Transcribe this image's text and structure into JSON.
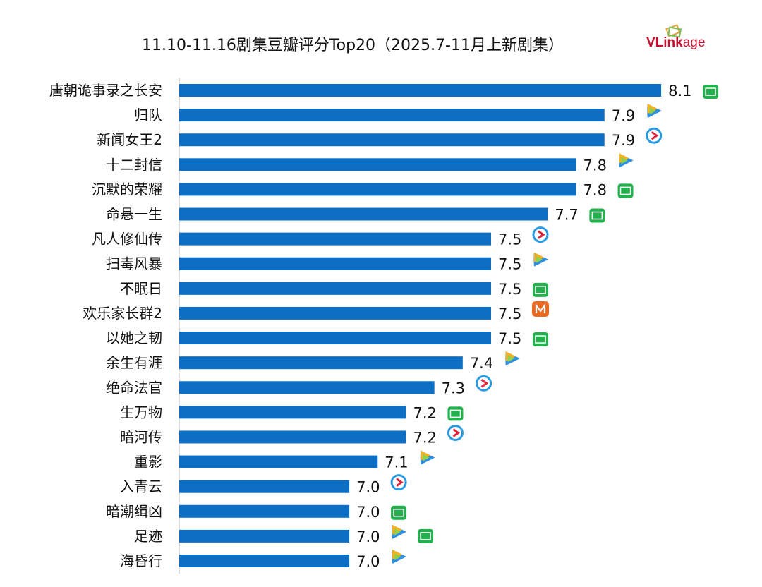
{
  "chart_data": {
    "type": "bar",
    "orientation": "horizontal",
    "title": "11.10-11.16剧集豆瓣评分Top20（2025.7-11月上新剧集）",
    "xlim": [
      6.4,
      8.2
    ],
    "grid": false,
    "bar_color": "#0d6fc4",
    "categories": [
      "唐朝诡事录之长安",
      "归队",
      "新闻女王2",
      "十二封信",
      "沉默的荣耀",
      "命悬一生",
      "凡人修仙传",
      "扫毒风暴",
      "不眠日",
      "欢乐家长群2",
      "以她之韧",
      "余生有涯",
      "绝命法官",
      "生万物",
      "暗河传",
      "重影",
      "入青云",
      "暗潮缉凶",
      "足迹",
      "海昏行"
    ],
    "values": [
      8.1,
      7.9,
      7.9,
      7.8,
      7.8,
      7.7,
      7.5,
      7.5,
      7.5,
      7.5,
      7.5,
      7.4,
      7.3,
      7.2,
      7.2,
      7.1,
      7.0,
      7.0,
      7.0,
      7.0
    ],
    "platforms": [
      [
        "iqiyi"
      ],
      [
        "tencent"
      ],
      [
        "youku"
      ],
      [
        "tencent"
      ],
      [
        "iqiyi"
      ],
      [
        "iqiyi"
      ],
      [
        "youku"
      ],
      [
        "tencent"
      ],
      [
        "iqiyi"
      ],
      [
        "mango"
      ],
      [
        "iqiyi"
      ],
      [
        "tencent"
      ],
      [
        "youku"
      ],
      [
        "iqiyi"
      ],
      [
        "youku"
      ],
      [
        "tencent"
      ],
      [
        "youku"
      ],
      [
        "iqiyi"
      ],
      [
        "tencent",
        "iqiyi"
      ],
      [
        "tencent"
      ]
    ]
  },
  "logo": {
    "text": "VLinkage"
  },
  "colors": {
    "iqiyi": "#22b14c",
    "youku": "#2a9be0",
    "mango": "#ee6a1e"
  }
}
